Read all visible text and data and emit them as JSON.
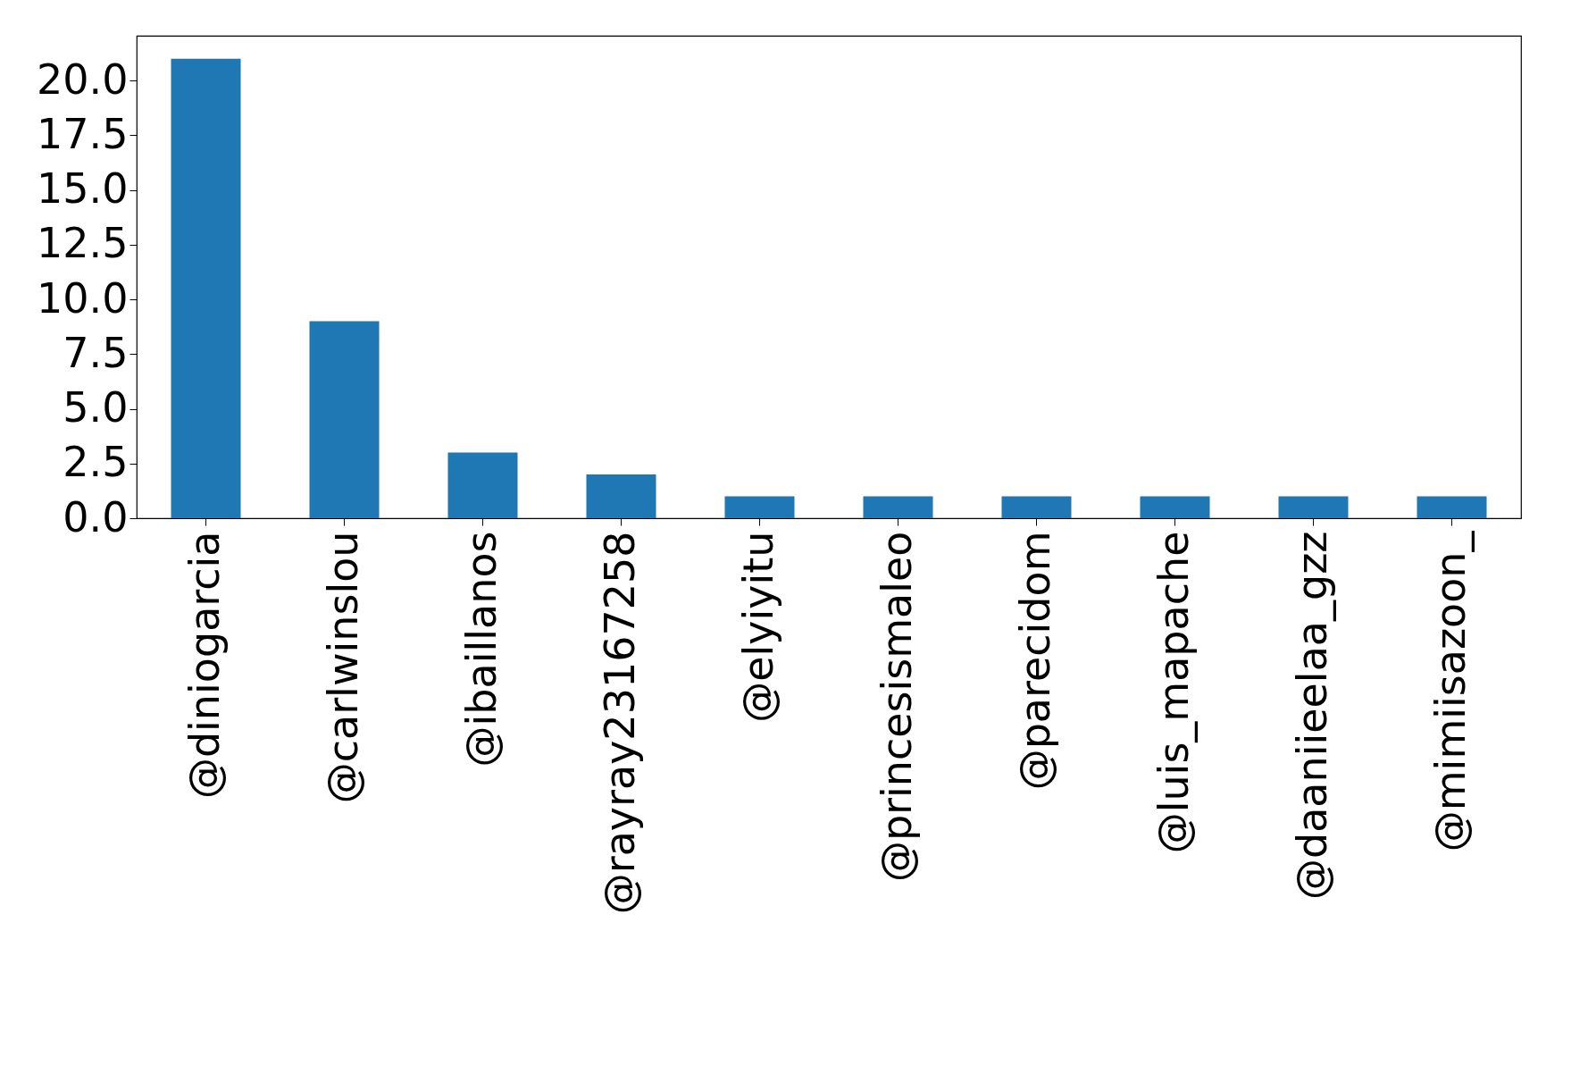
{
  "chart_data": {
    "type": "bar",
    "categories": [
      "@diniogarcia",
      "@carlwinslou",
      "@ibaillanos",
      "@rayray23167258",
      "@elyiyitu",
      "@princesismaleo",
      "@parecidom",
      "@luis_mapache",
      "@daaniieelaa_gzz",
      "@mimiisazoon_"
    ],
    "values": [
      21,
      9,
      3,
      2,
      1,
      1,
      1,
      1,
      1,
      1
    ],
    "color": "#1f77b4",
    "ylim": [
      0,
      22.05
    ],
    "yticks": [
      {
        "value": 0,
        "label": "0.0"
      },
      {
        "value": 2.5,
        "label": "2.5"
      },
      {
        "value": 5,
        "label": "5.0"
      },
      {
        "value": 7.5,
        "label": "7.5"
      },
      {
        "value": 10,
        "label": "10.0"
      },
      {
        "value": 12.5,
        "label": "12.5"
      },
      {
        "value": 15,
        "label": "15.0"
      },
      {
        "value": 17.5,
        "label": "17.5"
      },
      {
        "value": 20,
        "label": "20.0"
      }
    ],
    "grid": false
  }
}
